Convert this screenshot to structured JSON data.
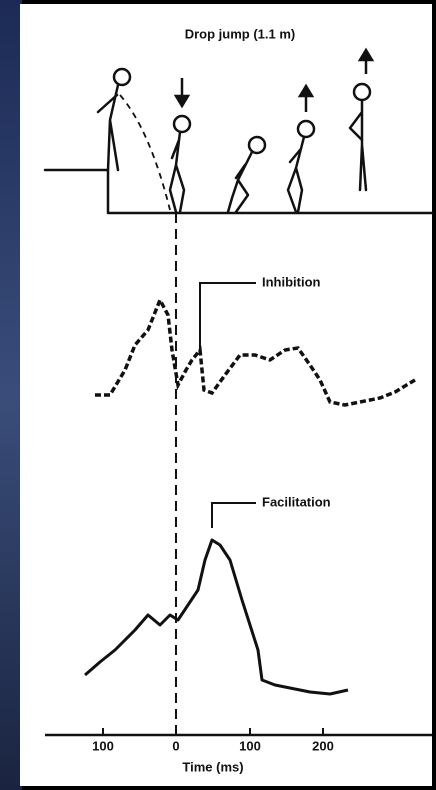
{
  "title": "Drop jump (1.1 m)",
  "annotations": {
    "inhibition": "Inhibition",
    "facilitation": "Facilitation"
  },
  "axis": {
    "ticks": [
      "100",
      "0",
      "100",
      "200"
    ],
    "label": "Time (ms)"
  }
}
